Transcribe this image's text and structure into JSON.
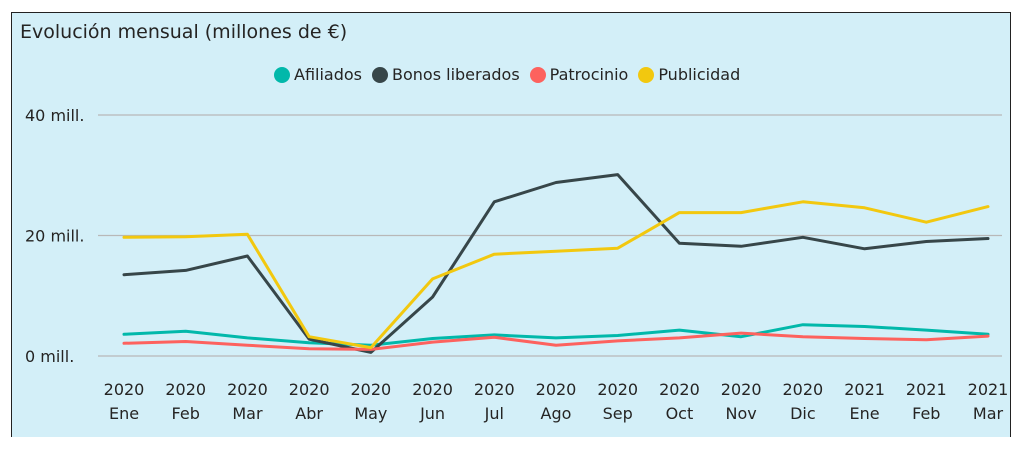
{
  "chart_data": {
    "type": "line",
    "title": "Evolución mensual (millones de €)",
    "xlabel": "",
    "ylabel": "",
    "ylim": [
      0,
      40
    ],
    "y_ticks": [
      {
        "value": 0,
        "label": "0 mill."
      },
      {
        "value": 20,
        "label": "20 mill."
      },
      {
        "value": 40,
        "label": "40 mill."
      }
    ],
    "grid": true,
    "legend_position": "top-center",
    "categories": [
      {
        "year": "2020",
        "month": "Ene"
      },
      {
        "year": "2020",
        "month": "Feb"
      },
      {
        "year": "2020",
        "month": "Mar"
      },
      {
        "year": "2020",
        "month": "Abr"
      },
      {
        "year": "2020",
        "month": "May"
      },
      {
        "year": "2020",
        "month": "Jun"
      },
      {
        "year": "2020",
        "month": "Jul"
      },
      {
        "year": "2020",
        "month": "Ago"
      },
      {
        "year": "2020",
        "month": "Sep"
      },
      {
        "year": "2020",
        "month": "Oct"
      },
      {
        "year": "2020",
        "month": "Nov"
      },
      {
        "year": "2020",
        "month": "Dic"
      },
      {
        "year": "2021",
        "month": "Ene"
      },
      {
        "year": "2021",
        "month": "Feb"
      },
      {
        "year": "2021",
        "month": "Mar"
      }
    ],
    "series": [
      {
        "name": "Afiliados",
        "color": "#01b8aa",
        "values": [
          3.6,
          4.1,
          3.0,
          2.2,
          1.8,
          2.9,
          3.5,
          3.0,
          3.4,
          4.3,
          3.2,
          5.2,
          4.9,
          4.3,
          3.6
        ]
      },
      {
        "name": "Bonos liberados",
        "color": "#374649",
        "values": [
          13.5,
          14.2,
          16.6,
          2.8,
          0.6,
          9.8,
          25.6,
          28.8,
          30.1,
          18.7,
          18.2,
          19.7,
          17.8,
          19.0,
          19.5
        ]
      },
      {
        "name": "Patrocinio",
        "color": "#fd625e",
        "values": [
          2.1,
          2.4,
          1.8,
          1.2,
          1.1,
          2.3,
          3.1,
          1.8,
          2.5,
          3.0,
          3.8,
          3.2,
          2.9,
          2.7,
          3.3
        ]
      },
      {
        "name": "Publicidad",
        "color": "#f2c80f",
        "values": [
          19.7,
          19.8,
          20.2,
          3.2,
          1.4,
          12.8,
          16.9,
          17.4,
          17.9,
          23.8,
          23.8,
          25.6,
          24.6,
          22.2,
          24.8
        ]
      }
    ]
  }
}
